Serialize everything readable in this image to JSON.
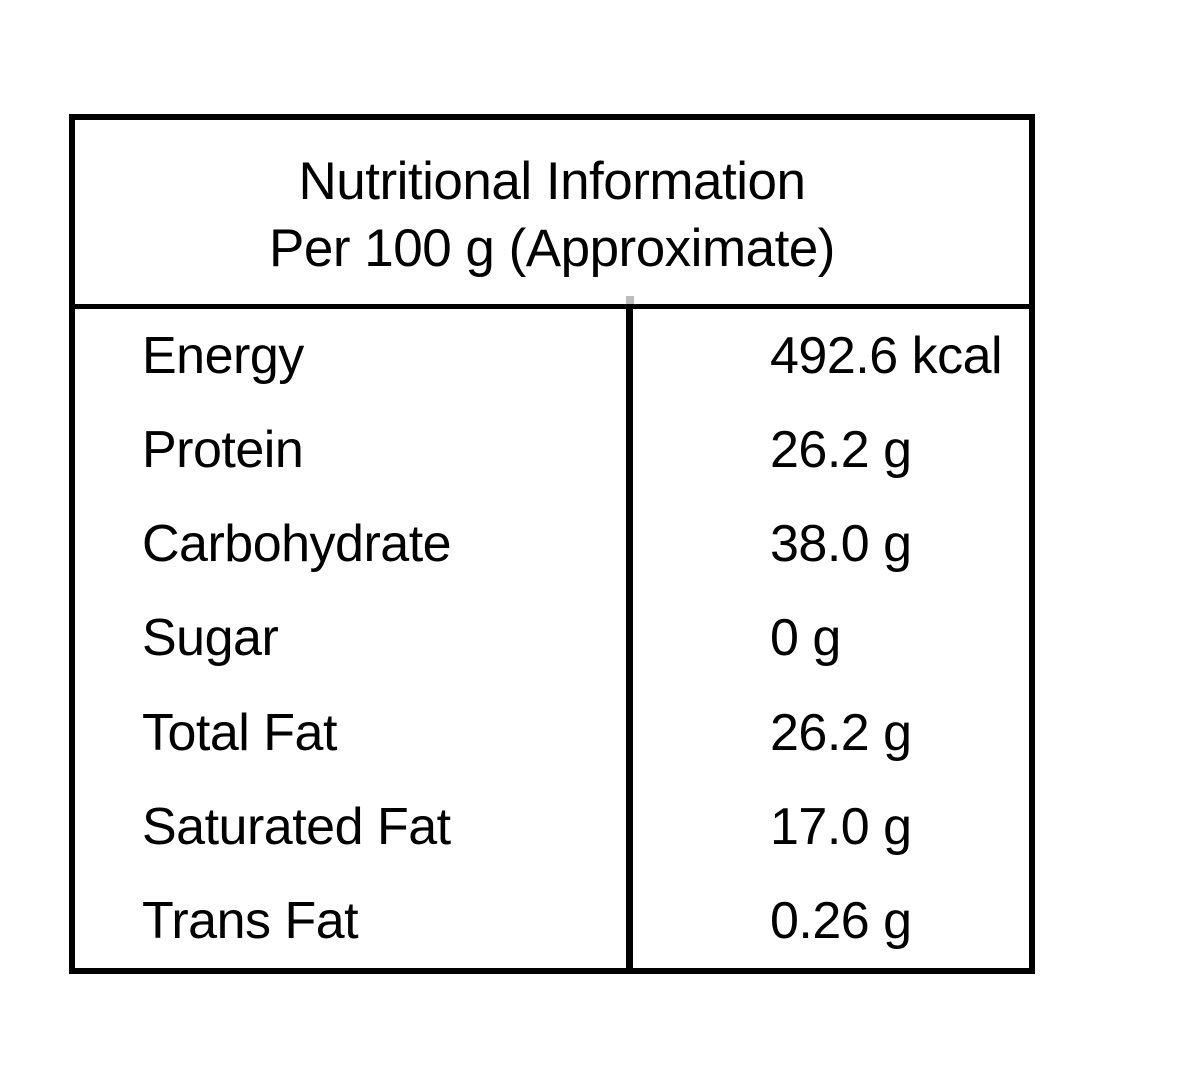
{
  "table": {
    "title_line1": "Nutritional Information",
    "title_line2": "Per 100 g (Approximate)",
    "rows": [
      {
        "label": "Energy",
        "value": "492.6 kcal"
      },
      {
        "label": "Protein",
        "value": "26.2 g"
      },
      {
        "label": "Carbohydrate",
        "value": "38.0 g"
      },
      {
        "label": "Sugar",
        "value": "0 g"
      },
      {
        "label": "Total Fat",
        "value": "26.2 g"
      },
      {
        "label": "Saturated Fat",
        "value": "17.0 g"
      },
      {
        "label": "Trans Fat",
        "value": "0.26 g"
      }
    ],
    "colors": {
      "border": "#000000",
      "text": "#000000",
      "background": "#ffffff"
    }
  }
}
